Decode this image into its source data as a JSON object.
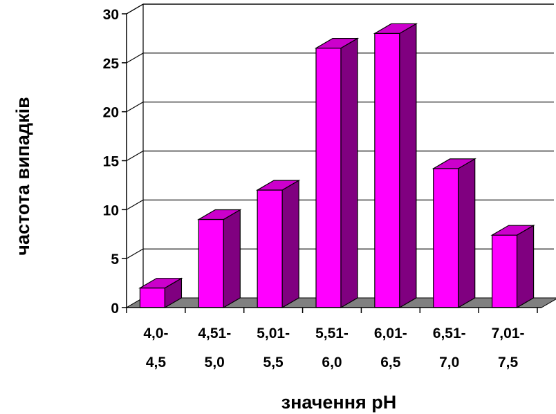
{
  "chart_data": {
    "type": "bar",
    "style": "3d-column",
    "categories": [
      [
        "4,0-",
        "4,5"
      ],
      [
        "4,51-",
        "5,0"
      ],
      [
        "5,01-",
        "5,5"
      ],
      [
        "5,51-",
        "6,0"
      ],
      [
        "6,01-",
        "6,5"
      ],
      [
        "6,51-",
        "7,0"
      ],
      [
        "7,01-",
        "7,5"
      ]
    ],
    "values": [
      2,
      9,
      12,
      26.5,
      28,
      14.2,
      7.4
    ],
    "xlabel": "значення pH",
    "ylabel": "частота випадків",
    "ylim": [
      0,
      30
    ],
    "yticks": [
      0,
      5,
      10,
      15,
      20,
      25,
      30
    ],
    "grid": true,
    "legend": "none"
  },
  "colors": {
    "bar_front": "#ff00ff",
    "bar_side": "#800080",
    "bar_top": "#cc00cc",
    "floor": "#808080",
    "grid": "#000000"
  }
}
